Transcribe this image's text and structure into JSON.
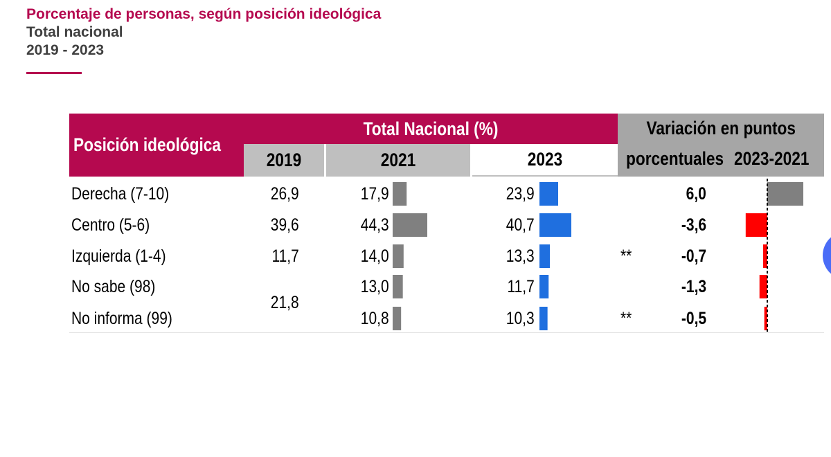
{
  "header": {
    "title": "Porcentaje de personas, según posición ideológica",
    "subtitle": "Total nacional",
    "period": "2019 - 2023"
  },
  "colors": {
    "accent": "#b5094f",
    "header_gray": "#a6a6a6",
    "subheader_gray": "#bfbfbf",
    "bar_2021": "#808080",
    "bar_2023": "#1f6fdf",
    "bar_positive": "#808080",
    "bar_negative": "#ff0000"
  },
  "table": {
    "col_label": "Posición ideológica",
    "group_label": "Total Nacional (%)",
    "years": [
      "2019",
      "2021",
      "2023"
    ],
    "variation_label_line1": "Variación en puntos",
    "variation_label_line2a": "porcentuales",
    "variation_label_line2b": "2023-2021"
  },
  "chart_data": {
    "type": "table",
    "columns": [
      "Posición ideológica",
      "2019",
      "2021",
      "2023",
      "Variación en puntos porcentuales 2023-2021"
    ],
    "rows": [
      {
        "label": "Derecha (7-10)",
        "v2019": "26,9",
        "v2021": "17,9",
        "v2023": "23,9",
        "mark": "",
        "var": "6,0"
      },
      {
        "label": "Centro (5-6)",
        "v2019": "39,6",
        "v2021": "44,3",
        "v2023": "40,7",
        "mark": "",
        "var": "-3,6"
      },
      {
        "label": "Izquierda (1-4)",
        "v2019": "11,7",
        "v2021": "14,0",
        "v2023": "13,3",
        "mark": "**",
        "var": "-0,7"
      },
      {
        "label": "No sabe (98)",
        "v2019": "21,8",
        "v2021": "13,0",
        "v2023": "11,7",
        "mark": "",
        "var": "-1,3"
      },
      {
        "label": "No informa (99)",
        "v2019": "21,8",
        "v2021": "10,8",
        "v2023": "10,3",
        "mark": "**",
        "var": "-0,5"
      }
    ],
    "values_2021": [
      17.9,
      44.3,
      14.0,
      13.0,
      10.8
    ],
    "values_2023": [
      23.9,
      40.7,
      13.3,
      11.7,
      10.3
    ],
    "variation": [
      6.0,
      -3.6,
      -0.7,
      -1.3,
      -0.5
    ]
  }
}
